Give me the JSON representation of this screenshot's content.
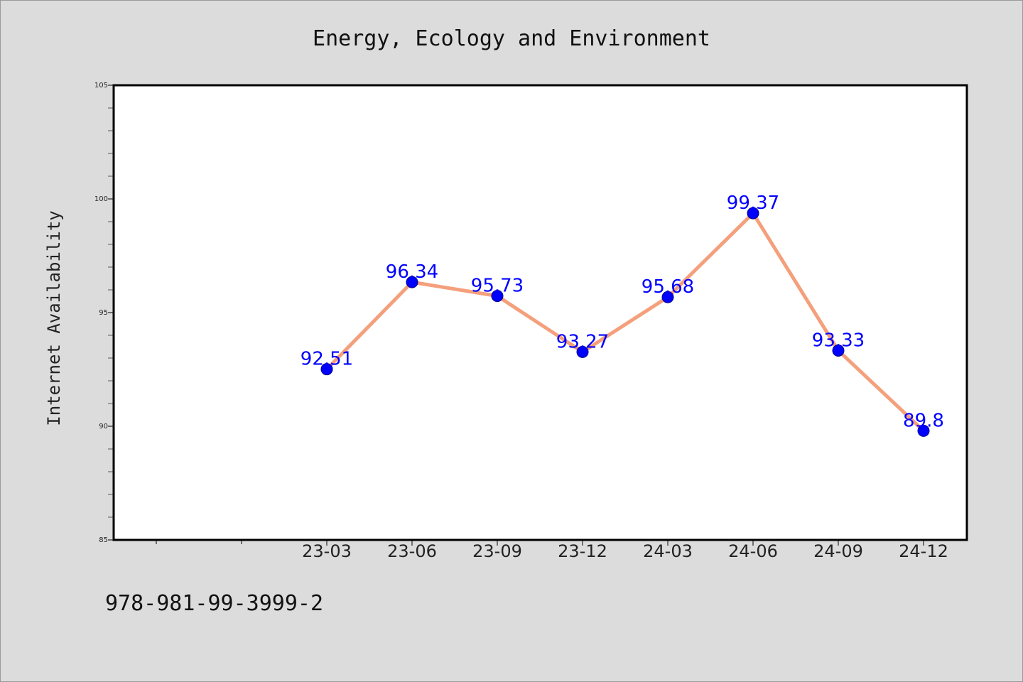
{
  "chart_data": {
    "type": "line",
    "title": "Energy, Ecology and Environment",
    "xlabel": "",
    "ylabel": "Internet Availability",
    "categories": [
      "23-03",
      "23-06",
      "23-09",
      "23-12",
      "24-03",
      "24-06",
      "24-09",
      "24-12"
    ],
    "series": [
      {
        "values": [
          92.51,
          96.34,
          95.73,
          93.27,
          95.68,
          99.37,
          93.33,
          89.8
        ],
        "data_labels": [
          "92.51",
          "96.34",
          "95.73",
          "93.27",
          "95.68",
          "99.37",
          "93.33",
          "89.8"
        ]
      }
    ],
    "ylim": [
      85,
      105
    ],
    "y_ticks": [
      "85",
      "90",
      "95",
      "100",
      "105"
    ],
    "grid": false,
    "legend": "none",
    "colors": {
      "line": "#f4a07c",
      "marker": "#0000ff",
      "data_label": "#0000ff",
      "background": "#dcdcdc",
      "plot_background": "#ffffff"
    }
  },
  "footnote": "978-981-99-3999-2"
}
